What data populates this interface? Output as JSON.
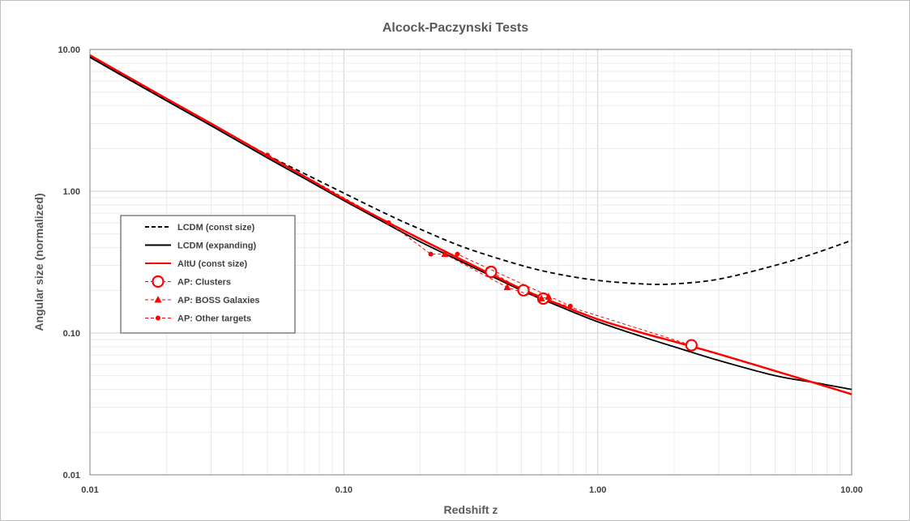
{
  "chart_data": {
    "type": "line",
    "title": "Alcock-Paczynski Tests",
    "xlabel": "Redshift z",
    "ylabel": "Angular size (normalized)",
    "xscale": "log",
    "yscale": "log",
    "xlim": [
      0.01,
      10
    ],
    "ylim": [
      0.01,
      10
    ],
    "x_ticks": [
      "0.01",
      "0.10",
      "1.00",
      "10.00"
    ],
    "y_ticks": [
      "0.01",
      "0.10",
      "1.00",
      "10.00"
    ],
    "grid": "major and minor",
    "legend_position": "left",
    "series": [
      {
        "name": "LCDM (const size)",
        "color": "#000000",
        "style": "dashed",
        "x": [
          0.01,
          0.02,
          0.03,
          0.05,
          0.07,
          0.1,
          0.15,
          0.2,
          0.3,
          0.5,
          0.7,
          1.0,
          1.5,
          2.0,
          3.0,
          5.0,
          7.0,
          10.0
        ],
        "y": [
          9.0,
          4.4,
          3.0,
          1.8,
          1.33,
          0.97,
          0.68,
          0.54,
          0.4,
          0.3,
          0.26,
          0.235,
          0.222,
          0.222,
          0.24,
          0.3,
          0.36,
          0.45
        ]
      },
      {
        "name": "LCDM (expanding)",
        "color": "#000000",
        "style": "solid",
        "x": [
          0.01,
          0.02,
          0.03,
          0.05,
          0.07,
          0.1,
          0.15,
          0.2,
          0.3,
          0.5,
          0.7,
          1.0,
          1.5,
          2.0,
          3.0,
          5.0,
          7.0,
          10.0
        ],
        "y": [
          8.8,
          4.35,
          2.9,
          1.72,
          1.23,
          0.86,
          0.58,
          0.44,
          0.31,
          0.2,
          0.155,
          0.12,
          0.094,
          0.08,
          0.064,
          0.05,
          0.045,
          0.04
        ]
      },
      {
        "name": "AltU (const size)",
        "color": "#ff0000",
        "style": "solid",
        "x": [
          0.01,
          0.02,
          0.03,
          0.05,
          0.07,
          0.1,
          0.15,
          0.2,
          0.3,
          0.5,
          0.7,
          1.0,
          1.5,
          2.0,
          3.0,
          5.0,
          7.0,
          10.0
        ],
        "y": [
          9.1,
          4.5,
          3.0,
          1.78,
          1.27,
          0.88,
          0.6,
          0.46,
          0.32,
          0.205,
          0.16,
          0.125,
          0.1,
          0.087,
          0.071,
          0.054,
          0.045,
          0.037
        ]
      },
      {
        "name": "AP: Clusters",
        "color": "#ff0000",
        "style": "dashed",
        "marker": "open-circle",
        "x": [
          0.38,
          0.51,
          0.61,
          2.34
        ],
        "y": [
          0.27,
          0.2,
          0.175,
          0.082
        ]
      },
      {
        "name": "AP: BOSS Galaxies",
        "color": "#ff0000",
        "style": "dashed",
        "marker": "triangle",
        "x": [
          0.25,
          0.44,
          0.6,
          0.64
        ],
        "y": [
          0.36,
          0.21,
          0.175,
          0.18
        ]
      },
      {
        "name": "AP: Other targets",
        "color": "#ff0000",
        "style": "dashed",
        "marker": "dot",
        "x": [
          0.05,
          0.15,
          0.22,
          0.28,
          0.78
        ],
        "y": [
          1.8,
          0.6,
          0.36,
          0.36,
          0.155
        ]
      }
    ]
  }
}
